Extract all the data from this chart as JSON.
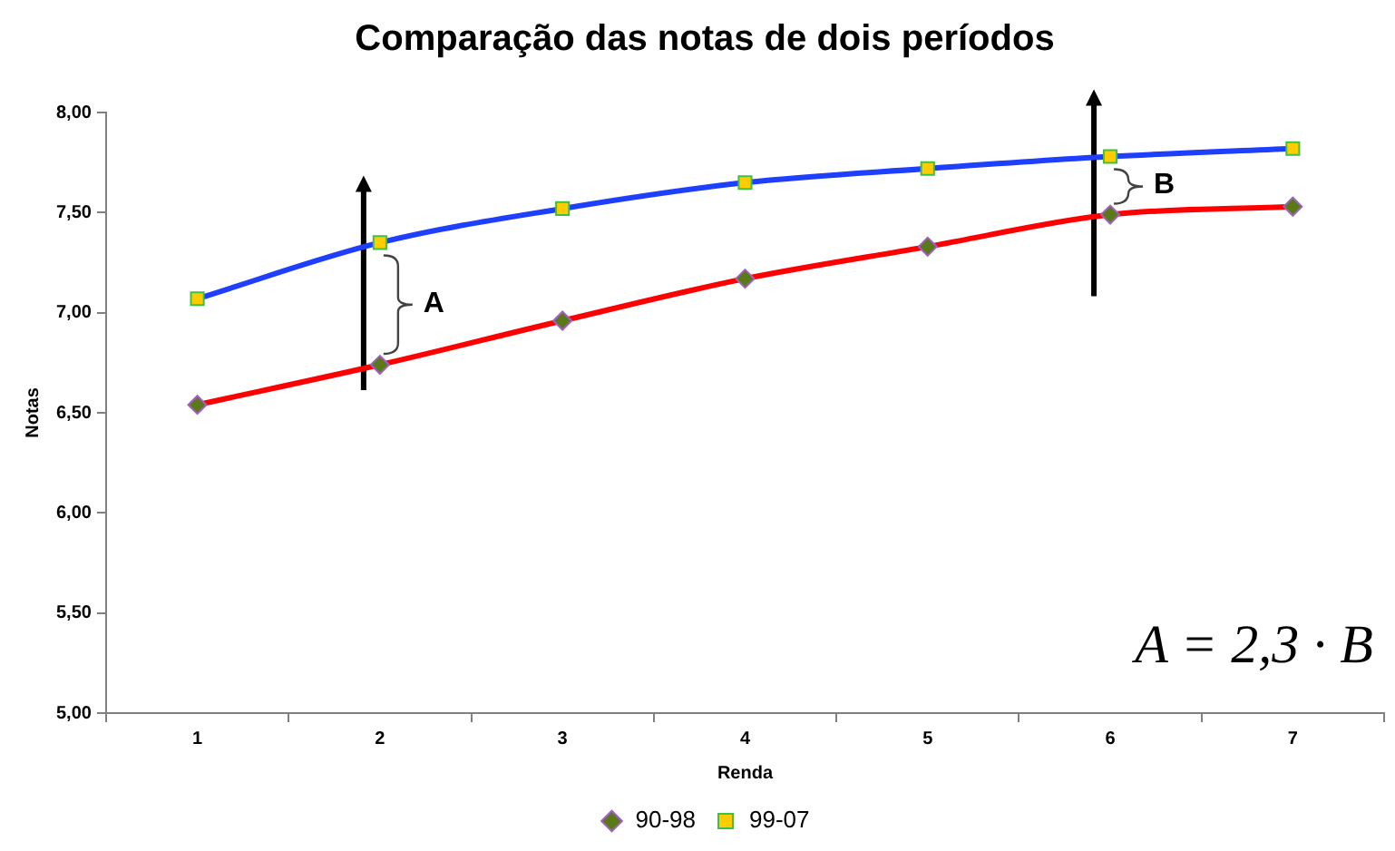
{
  "chart_data": {
    "type": "line",
    "title": "Comparação das notas de dois períodos",
    "xlabel": "Renda",
    "ylabel": "Notas",
    "categories": [
      "1",
      "2",
      "3",
      "4",
      "5",
      "6",
      "7"
    ],
    "series": [
      {
        "name": "90-98",
        "color": "#ff0000",
        "marker": "diamond",
        "values": [
          6.54,
          6.74,
          6.96,
          7.17,
          7.33,
          7.49,
          7.53
        ]
      },
      {
        "name": "99-07",
        "color": "#1f3fff",
        "marker": "square",
        "values": [
          7.07,
          7.35,
          7.52,
          7.65,
          7.72,
          7.78,
          7.82
        ]
      }
    ],
    "ylim": [
      5,
      8
    ],
    "yticks": [
      {
        "value": 5,
        "label": "5,00"
      },
      {
        "value": 5.5,
        "label": "5,50"
      },
      {
        "value": 6,
        "label": "6,00"
      },
      {
        "value": 6.5,
        "label": "6,50"
      },
      {
        "value": 7,
        "label": "7,00"
      },
      {
        "value": 7.5,
        "label": "7,50"
      },
      {
        "value": 8,
        "label": "8,00"
      }
    ],
    "grid": false,
    "legend": "bottom",
    "annotations": [
      "A",
      "B",
      "A = 2,3 · B"
    ]
  }
}
